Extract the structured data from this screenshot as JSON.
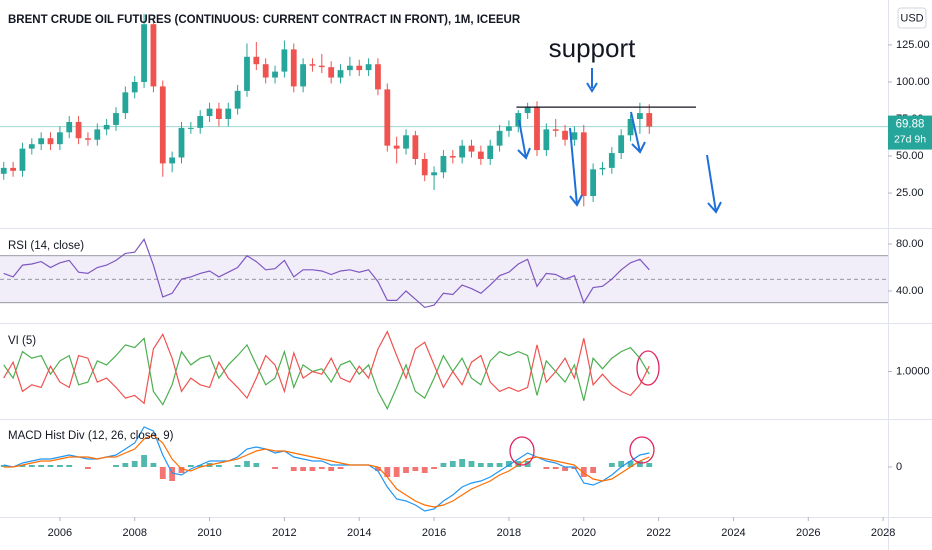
{
  "chart_data": {
    "type": "candlestick",
    "title": "BRENT CRUDE OIL FUTURES (CONTINUOUS: CURRENT CONTRACT IN FRONT), 1M, ICEEUR",
    "currency": "USD",
    "annotation": "support",
    "last_price": 69.88,
    "countdown": "27d 9h",
    "x": [
      2004.5,
      2004.75,
      2005,
      2005.25,
      2005.5,
      2005.75,
      2006,
      2006.25,
      2006.5,
      2006.75,
      2007,
      2007.25,
      2007.5,
      2007.75,
      2008,
      2008.25,
      2008.5,
      2008.75,
      2009,
      2009.25,
      2009.5,
      2009.75,
      2010,
      2010.25,
      2010.5,
      2010.75,
      2011,
      2011.25,
      2011.5,
      2011.75,
      2012,
      2012.25,
      2012.5,
      2012.75,
      2013,
      2013.25,
      2013.5,
      2013.75,
      2014,
      2014.25,
      2014.5,
      2014.75,
      2015,
      2015.25,
      2015.5,
      2015.75,
      2016,
      2016.25,
      2016.5,
      2016.75,
      2017,
      2017.25,
      2017.5,
      2017.75,
      2018,
      2018.25,
      2018.5,
      2018.75,
      2019,
      2019.25,
      2019.5,
      2019.75,
      2020,
      2020.25,
      2020.5,
      2020.75,
      2021,
      2021.25,
      2021.5,
      2021.75
    ],
    "open": [
      38,
      42,
      40,
      55,
      58,
      62,
      58,
      66,
      73,
      62,
      61,
      68,
      71,
      79,
      93,
      100,
      139,
      97,
      45,
      49,
      69,
      69,
      77,
      82,
      75,
      82,
      94,
      117,
      112,
      103,
      107,
      122,
      97,
      112,
      111,
      110,
      103,
      108,
      111,
      108,
      112,
      95,
      57,
      55,
      64,
      48,
      37,
      39,
      50,
      49,
      57,
      53,
      48,
      57,
      67,
      70,
      79,
      83,
      54,
      68,
      67,
      61,
      66,
      23,
      41,
      42,
      52,
      64,
      75,
      79
    ],
    "high": [
      46,
      46,
      59,
      62,
      66,
      66,
      70,
      77,
      77,
      66,
      72,
      75,
      83,
      97,
      104,
      146,
      143,
      101,
      53,
      73,
      73,
      81,
      86,
      86,
      86,
      98,
      126,
      127,
      116,
      111,
      128,
      126,
      116,
      116,
      119,
      114,
      112,
      117,
      115,
      116,
      116,
      99,
      63,
      68,
      67,
      52,
      43,
      54,
      54,
      61,
      61,
      57,
      61,
      71,
      74,
      81,
      86,
      87,
      72,
      75,
      71,
      70,
      71,
      45,
      46,
      56,
      68,
      78,
      86,
      85
    ],
    "low": [
      34,
      36,
      36,
      51,
      54,
      54,
      54,
      62,
      58,
      57,
      57,
      64,
      67,
      75,
      89,
      96,
      93,
      36,
      39,
      45,
      65,
      65,
      73,
      70,
      70,
      78,
      90,
      108,
      99,
      99,
      103,
      93,
      93,
      107,
      106,
      99,
      99,
      104,
      104,
      104,
      91,
      53,
      45,
      51,
      44,
      33,
      27,
      35,
      45,
      45,
      49,
      44,
      44,
      53,
      63,
      66,
      75,
      50,
      50,
      63,
      57,
      57,
      16,
      19,
      37,
      38,
      48,
      60,
      65,
      65
    ],
    "close": [
      42,
      40,
      55,
      58,
      62,
      58,
      66,
      73,
      62,
      61,
      68,
      71,
      79,
      93,
      100,
      139,
      97,
      45,
      49,
      69,
      69,
      77,
      82,
      75,
      82,
      94,
      117,
      112,
      103,
      107,
      122,
      97,
      112,
      111,
      110,
      103,
      108,
      111,
      108,
      112,
      95,
      57,
      55,
      64,
      48,
      37,
      39,
      50,
      49,
      57,
      53,
      48,
      57,
      67,
      70,
      79,
      83,
      54,
      68,
      67,
      61,
      66,
      23,
      41,
      42,
      52,
      64,
      75,
      79,
      69.88
    ],
    "up_color": "#26a69a",
    "down_color": "#ef5350",
    "xlim": [
      2004.4,
      2028.13
    ],
    "xticks": [
      2006,
      2008,
      2010,
      2012,
      2014,
      2016,
      2018,
      2020,
      2022,
      2024,
      2026,
      2028
    ],
    "ylim": [
      1.4,
      148.6
    ],
    "yticks": [
      {
        "value": 25,
        "label": "25.00"
      },
      {
        "value": 50,
        "label": "50.00"
      },
      {
        "value": 75,
        "label": "75.00"
      },
      {
        "value": 100,
        "label": "100.00"
      },
      {
        "value": 125,
        "label": "125.00"
      }
    ],
    "support": {
      "value": 83,
      "x": [
        2018.2,
        2023.0
      ]
    },
    "indicators": [
      {
        "type": "rsi",
        "name": "RSI (14, close)",
        "color": "#7e57c2",
        "values": [
          55,
          52,
          62,
          63,
          65,
          60,
          64,
          66,
          56,
          55,
          60,
          62,
          66,
          72,
          73,
          84,
          62,
          35,
          38,
          50,
          52,
          55,
          57,
          52,
          56,
          60,
          70,
          65,
          58,
          59,
          66,
          52,
          58,
          58,
          57,
          54,
          57,
          58,
          56,
          58,
          48,
          32,
          32,
          40,
          33,
          26,
          28,
          38,
          37,
          45,
          42,
          38,
          45,
          53,
          56,
          63,
          67,
          44,
          55,
          54,
          50,
          53,
          30,
          43,
          44,
          50,
          58,
          64,
          67,
          58
        ],
        "bands": [
          30,
          50,
          70
        ],
        "ylim": [
          13.6,
          91.9
        ],
        "yticks": [
          {
            "value": 40,
            "label": "40.00"
          },
          {
            "value": 80,
            "label": "80.00"
          }
        ]
      },
      {
        "type": "vi",
        "name": "VI (5)",
        "series": [
          {
            "color": "#4caf50",
            "values": [
              1.05,
              0.95,
              1.15,
              1.1,
              1.12,
              0.98,
              1.08,
              1.12,
              0.9,
              0.92,
              1.08,
              1.05,
              1.12,
              1.2,
              1.18,
              1.25,
              0.85,
              0.75,
              0.9,
              1.15,
              1.05,
              1.1,
              1.12,
              0.95,
              1.05,
              1.12,
              1.2,
              1.05,
              0.9,
              0.95,
              1.15,
              0.88,
              1.05,
              1.0,
              1.02,
              0.92,
              1.05,
              1.08,
              0.98,
              1.05,
              0.85,
              0.72,
              0.88,
              1.05,
              0.85,
              0.8,
              0.95,
              1.12,
              1.0,
              1.1,
              0.95,
              0.9,
              1.08,
              1.15,
              1.12,
              1.15,
              1.12,
              0.82,
              1.08,
              1.0,
              0.92,
              1.05,
              0.78,
              1.1,
              1.02,
              1.1,
              1.15,
              1.18,
              1.1,
              0.98
            ]
          },
          {
            "color": "#ef5350",
            "values": [
              0.95,
              1.07,
              0.85,
              0.9,
              0.88,
              1.04,
              0.92,
              0.88,
              1.12,
              1.1,
              0.92,
              0.95,
              0.88,
              0.8,
              0.82,
              0.76,
              1.17,
              1.28,
              1.1,
              0.85,
              0.95,
              0.9,
              0.88,
              1.07,
              0.95,
              0.88,
              0.8,
              0.95,
              1.12,
              1.05,
              0.85,
              1.14,
              0.95,
              1.0,
              0.98,
              1.1,
              0.95,
              0.92,
              1.04,
              0.95,
              1.17,
              1.3,
              1.12,
              0.95,
              1.17,
              1.22,
              1.05,
              0.88,
              1.0,
              0.9,
              1.07,
              1.12,
              0.92,
              0.85,
              0.88,
              0.85,
              0.88,
              1.2,
              0.92,
              1.0,
              1.1,
              0.95,
              1.25,
              0.9,
              0.98,
              0.9,
              0.85,
              0.82,
              0.9,
              1.04
            ]
          }
        ],
        "ylim": [
          0.65,
          1.35
        ],
        "yticks": [
          {
            "value": 1,
            "label": "1.0000"
          }
        ]
      },
      {
        "type": "macd",
        "name": "MACD Hist Div (12, 26, close, 9)",
        "series": [
          {
            "color": "#2196f3",
            "values": [
              1,
              0,
              2,
              3,
              4,
              4,
              5,
              6,
              5,
              4,
              4,
              5,
              6,
              9,
              12,
              20,
              18,
              6,
              -3,
              -4,
              -1,
              1,
              3,
              3,
              3,
              5,
              9,
              10,
              9,
              7,
              8,
              5,
              4,
              3,
              3,
              1,
              1,
              1,
              1,
              1,
              -2,
              -10,
              -16,
              -17,
              -19,
              -22,
              -21,
              -17,
              -14,
              -10,
              -8,
              -7,
              -5,
              -2,
              1,
              4,
              7,
              5,
              3,
              2,
              0,
              0,
              -8,
              -9,
              -7,
              -4,
              0,
              3,
              6,
              7
            ]
          },
          {
            "color": "#ff6d00",
            "values": [
              0,
              0,
              1,
              2,
              3,
              3,
              4,
              5,
              5,
              5,
              4,
              5,
              5,
              7,
              9,
              14,
              16,
              12,
              4,
              -1,
              -2,
              0,
              1,
              2,
              3,
              4,
              6,
              8,
              9,
              8,
              8,
              7,
              6,
              5,
              4,
              3,
              2,
              1,
              1,
              1,
              0,
              -5,
              -11,
              -14,
              -17,
              -19,
              -20,
              -19,
              -17,
              -14,
              -11,
              -9,
              -7,
              -4,
              -2,
              1,
              4,
              5,
              4,
              3,
              2,
              1,
              -3,
              -6,
              -7,
              -6,
              -3,
              0,
              3,
              5
            ]
          }
        ],
        "histogram": {
          "up_color": "#26a69a",
          "down_color": "#ef5350",
          "values": [
            1,
            0,
            1,
            1,
            1,
            1,
            1,
            1,
            0,
            -1,
            0,
            0,
            1,
            2,
            3,
            6,
            2,
            -6,
            -7,
            -3,
            1,
            1,
            2,
            1,
            0,
            1,
            3,
            2,
            0,
            -1,
            0,
            -2,
            -2,
            -2,
            -1,
            -2,
            -1,
            0,
            0,
            0,
            -2,
            -5,
            -5,
            -3,
            -2,
            -3,
            -1,
            2,
            3,
            4,
            3,
            2,
            2,
            2,
            3,
            3,
            3,
            0,
            -1,
            -1,
            -2,
            -1,
            -5,
            -3,
            0,
            2,
            3,
            3,
            3,
            2
          ]
        },
        "ylim": [
          -24,
          23.5
        ],
        "yticks": [
          0
        ]
      }
    ]
  }
}
